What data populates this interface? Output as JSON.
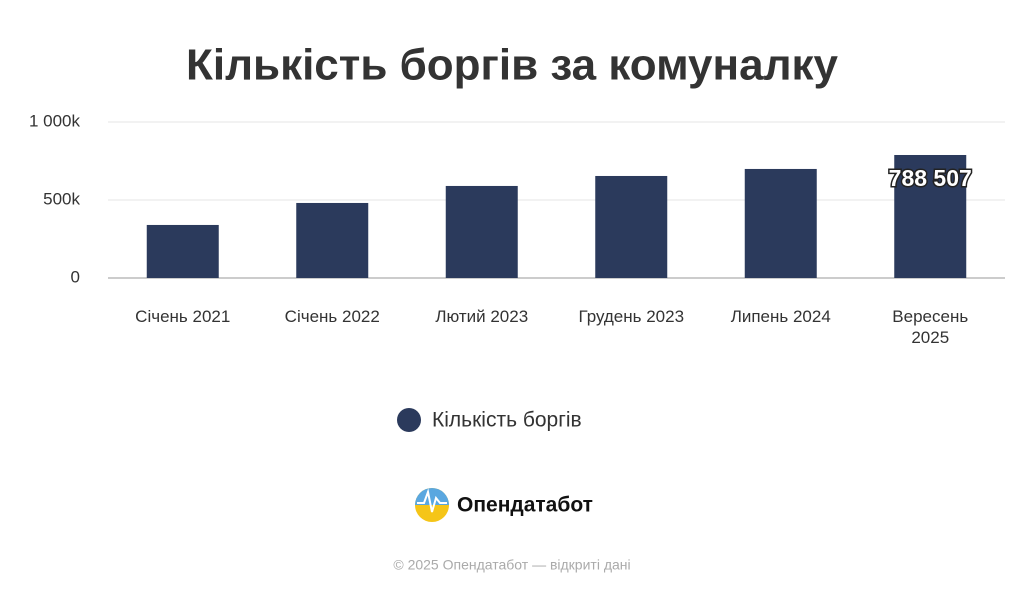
{
  "chart_data": {
    "type": "bar",
    "title": "Кількість боргів за комуналку",
    "categories": [
      "Січень 2021",
      "Січень 2022",
      "Лютий 2023",
      "Грудень 2023",
      "Липень 2024",
      "Вересень 2025"
    ],
    "series": [
      {
        "name": "Кількість боргів",
        "color": "#2b3a5c",
        "values": [
          340000,
          481000,
          590000,
          654000,
          699000,
          788507
        ],
        "value_labels": [
          null,
          null,
          null,
          null,
          null,
          "788 507"
        ]
      }
    ],
    "ylim": [
      0,
      1000000
    ],
    "yticks": [
      0,
      {
        "value": 500000,
        "label": "500k"
      },
      {
        "value": 1000000,
        "label": "1 000k"
      }
    ],
    "grid": true,
    "legend": "bottom"
  },
  "branding": {
    "logo": "Опендатабот",
    "footer": "© 2025 Опендатабот — відкриті дані"
  }
}
